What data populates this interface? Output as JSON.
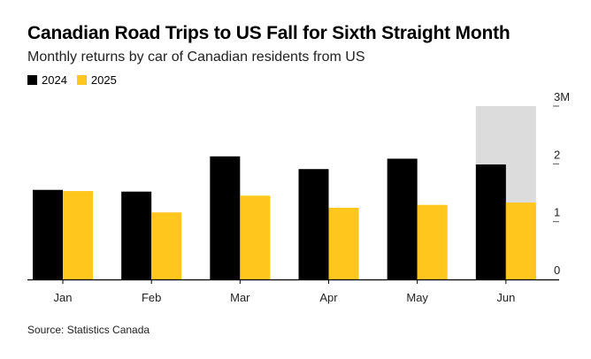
{
  "title": "Canadian Road Trips to US Fall for Sixth Straight Month",
  "subtitle": "Monthly returns by car of Canadian residents from US",
  "source": "Source: Statistics Canada",
  "colors": {
    "series_2024": "#000000",
    "series_2025": "#ffc61e",
    "highlight": "#dcdcdc",
    "axis": "#000000",
    "tick": "#555555"
  },
  "chart_data": {
    "type": "bar",
    "categories": [
      "Jan",
      "Feb",
      "Mar",
      "Apr",
      "May",
      "Jun"
    ],
    "series": [
      {
        "name": "2024",
        "values": [
          1.55,
          1.52,
          2.13,
          1.91,
          2.09,
          1.99
        ]
      },
      {
        "name": "2025",
        "values": [
          1.53,
          1.16,
          1.45,
          1.24,
          1.29,
          1.33
        ]
      }
    ],
    "ylim": [
      0,
      3
    ],
    "yticks": [
      {
        "value": 0,
        "label": "0"
      },
      {
        "value": 1,
        "label": "1"
      },
      {
        "value": 2,
        "label": "2"
      },
      {
        "value": 3,
        "label": "3M"
      }
    ],
    "highlight_category": "Jun",
    "xlabel": "",
    "ylabel": "",
    "legend": "top-left",
    "grid": false
  }
}
